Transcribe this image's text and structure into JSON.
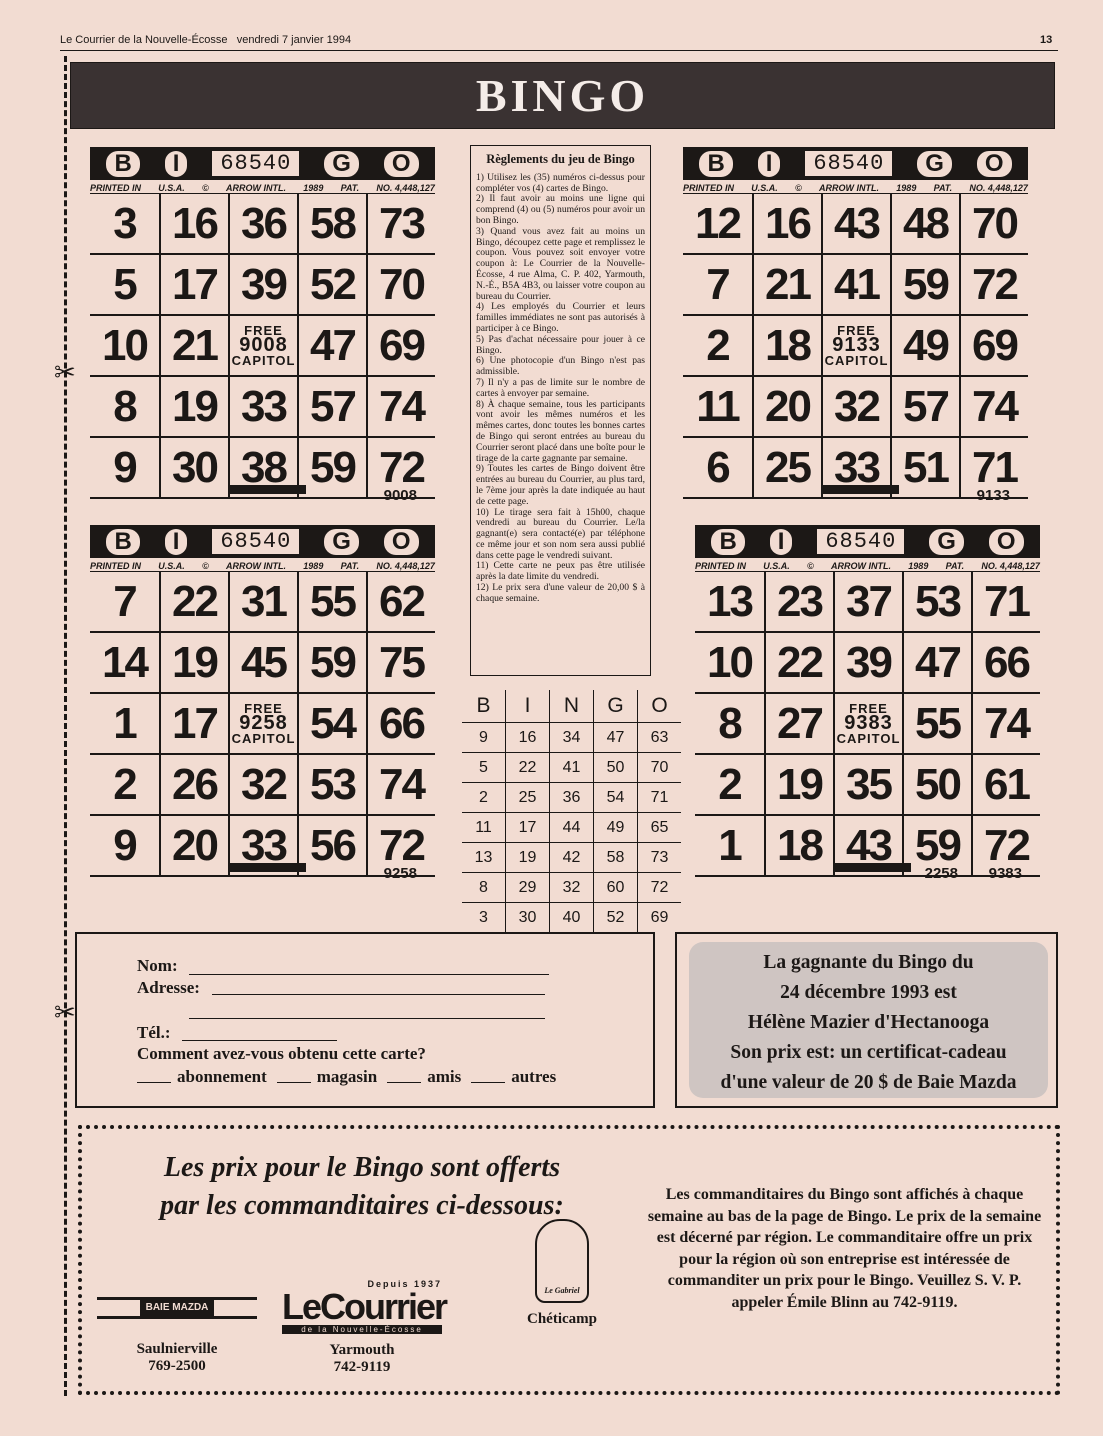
{
  "header": {
    "publication": "Le Courrier de la Nouvelle-Écosse",
    "date": "vendredi 7 janvier 1994",
    "page": "13"
  },
  "banner": "BINGO",
  "cards": [
    {
      "header": [
        "B",
        "I",
        "68540",
        "G",
        "O"
      ],
      "imprint": [
        "PRINTED IN",
        "U.S.A.",
        "©",
        "ARROW INTL.",
        "1989",
        "PAT.",
        "NO. 4,448,127"
      ],
      "rows": [
        [
          3,
          16,
          36,
          58,
          73
        ],
        [
          5,
          17,
          39,
          52,
          70
        ],
        [
          10,
          21,
          {
            "top": "FREE",
            "id": "9008",
            "bottom": "CAPITOL"
          },
          47,
          69
        ],
        [
          8,
          19,
          33,
          57,
          74
        ],
        [
          9,
          30,
          38,
          59,
          72
        ]
      ],
      "number": "9008"
    },
    {
      "header": [
        "B",
        "I",
        "68540",
        "G",
        "O"
      ],
      "imprint": [
        "PRINTED IN",
        "U.S.A.",
        "©",
        "ARROW INTL.",
        "1989",
        "PAT.",
        "NO. 4,448,127"
      ],
      "rows": [
        [
          12,
          16,
          43,
          48,
          70
        ],
        [
          7,
          21,
          41,
          59,
          72
        ],
        [
          2,
          18,
          {
            "top": "FREE",
            "id": "9133",
            "bottom": "CAPITOL"
          },
          49,
          69
        ],
        [
          11,
          20,
          32,
          57,
          74
        ],
        [
          6,
          25,
          33,
          51,
          71
        ]
      ],
      "number": "9133"
    },
    {
      "header": [
        "B",
        "I",
        "68540",
        "G",
        "O"
      ],
      "imprint": [
        "PRINTED IN",
        "U.S.A.",
        "©",
        "ARROW INTL.",
        "1989",
        "PAT.",
        "NO. 4,448,127"
      ],
      "rows": [
        [
          7,
          22,
          31,
          55,
          62
        ],
        [
          14,
          19,
          45,
          59,
          75
        ],
        [
          1,
          17,
          {
            "top": "FREE",
            "id": "9258",
            "bottom": "CAPITOL"
          },
          54,
          66
        ],
        [
          2,
          26,
          32,
          53,
          74
        ],
        [
          9,
          20,
          33,
          56,
          72
        ]
      ],
      "number": "9258"
    },
    {
      "header": [
        "B",
        "I",
        "68540",
        "G",
        "O"
      ],
      "imprint": [
        "PRINTED IN",
        "U.S.A.",
        "©",
        "ARROW INTL.",
        "1989",
        "PAT.",
        "NO. 4,448,127"
      ],
      "rows": [
        [
          13,
          23,
          37,
          53,
          71
        ],
        [
          10,
          22,
          39,
          47,
          66
        ],
        [
          8,
          27,
          {
            "top": "FREE",
            "id": "9383",
            "bottom": "CAPITOL"
          },
          55,
          74
        ],
        [
          2,
          19,
          35,
          50,
          61
        ],
        [
          1,
          18,
          43,
          59,
          72
        ]
      ],
      "stamp": "2258",
      "number": "9383"
    }
  ],
  "rules": {
    "title": "Règlements du jeu de Bingo",
    "items": [
      "1) Utilisez les (35) numéros ci-dessus pour compléter vos (4) cartes de Bingo.",
      "2) Il faut avoir au moins une ligne qui comprend (4) ou (5) numéros pour avoir un bon Bingo.",
      "3) Quand vous avez fait au moins un Bingo, découpez cette page et remplissez le coupon. Vous pouvez soit envoyer votre coupon à: Le Courrier de la Nouvelle-Écosse, 4 rue Alma, C. P. 402, Yarmouth, N.-É., B5A 4B3, ou laisser votre coupon au bureau du Courrier.",
      "4) Les employés du Courrier et leurs familles immédiates ne sont pas autorisés à participer à ce Bingo.",
      "5) Pas d'achat nécessaire pour jouer à ce Bingo.",
      "6) Une photocopie d'un Bingo n'est pas admissible.",
      "7) Il n'y a pas de limite sur le nombre de cartes à envoyer par semaine.",
      "8) À chaque semaine, tous les participants vont avoir les mêmes numéros et les mêmes cartes, donc toutes les bonnes cartes de Bingo qui seront entrées au bureau du Courrier seront placé dans une boîte pour le tirage de la carte gagnante par semaine.",
      "9) Toutes les cartes de Bingo doivent être entrées au bureau du Courrier, au plus tard, le 7ème jour après la date indiquée au haut de cette page.",
      "10) Le tirage sera fait à 15h00, chaque vendredi au bureau du Courrier. Le/la gagnant(e) sera contacté(e) par téléphone ce même jour et son nom sera aussi publié dans cette page le vendredi suivant.",
      "11) Cette carte ne peux pas être utilisée après la date limite du vendredi.",
      "12) Le prix sera d'une valeur de 20,00 $ à chaque semaine."
    ]
  },
  "drawn": {
    "columns": [
      "B",
      "I",
      "N",
      "G",
      "O"
    ],
    "rows": [
      [
        9,
        16,
        34,
        47,
        63
      ],
      [
        5,
        22,
        41,
        50,
        70
      ],
      [
        2,
        25,
        36,
        54,
        71
      ],
      [
        11,
        17,
        44,
        49,
        65
      ],
      [
        13,
        19,
        42,
        58,
        73
      ],
      [
        8,
        29,
        32,
        60,
        72
      ],
      [
        3,
        30,
        40,
        52,
        69
      ]
    ]
  },
  "coupon": {
    "name": "Nom:",
    "address": "Adresse:",
    "phone": "Tél.:",
    "question": "Comment avez-vous obtenu cette carte?",
    "options": [
      "abonnement",
      "magasin",
      "amis",
      "autres"
    ]
  },
  "winner": {
    "lines": [
      "La gagnante du Bingo du",
      "24 décembre 1993 est",
      "Hélène Mazier d'Hectanooga",
      "Son prix est: un certificat-cadeau",
      "d'une valeur de 20 $ de Baie Mazda"
    ]
  },
  "sponsors": {
    "heading": [
      "Les prix pour le Bingo sont offerts",
      "par les commanditaires ci-dessous:"
    ],
    "list": [
      {
        "logo": "BAIE MAZDA",
        "place": "Saulnierville",
        "phone": "769-2500"
      },
      {
        "logo": "LeCourrier",
        "since": "Depuis 1937",
        "subtitle": "de la Nouvelle-Écosse",
        "place": "Yarmouth",
        "phone": "742-9119"
      },
      {
        "logo": "Le Gabriel",
        "place": "Chéticamp"
      }
    ],
    "note": "Les commanditaires du Bingo sont affichés à chaque semaine au bas de la page de Bingo. Le prix de la semaine est décerné par région. Le commanditaire offre un prix pour la région où son entreprise est intéressée de commanditer un prix pour le Bingo. Veuillez S. V. P. appeler Émile Blinn au 742-9119."
  }
}
